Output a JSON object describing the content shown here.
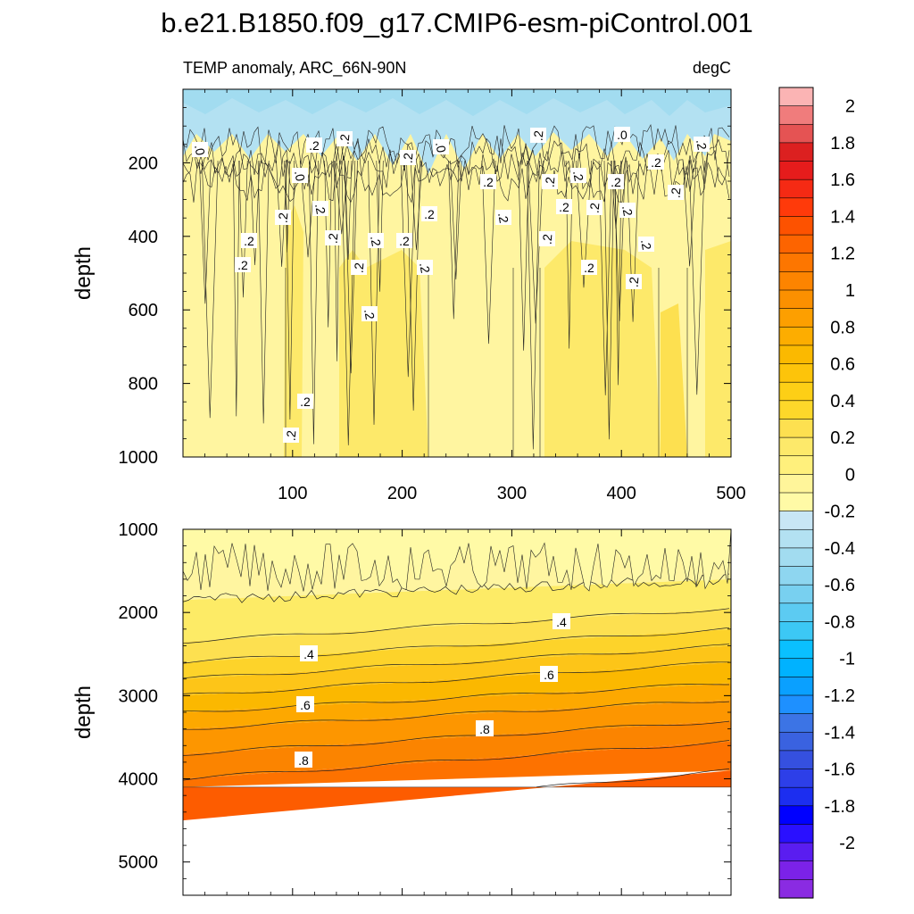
{
  "chart_data": {
    "type": "heatmap",
    "title": "b.e21.B1850.f09_g17.CMIP6-esm-piControl.001",
    "subtitle_left": "TEMP anomaly, ARC_66N-90N",
    "subtitle_right": "degC",
    "ylabel": "depth",
    "x_ticks": [
      "100",
      "200",
      "300",
      "400",
      "500"
    ],
    "xlim": [
      0,
      500
    ],
    "top_panel": {
      "ylim": [
        0,
        1000
      ],
      "y_ticks": [
        "200",
        "400",
        "600",
        "800",
        "1000"
      ],
      "contour_labels": [
        ".0",
        ".2",
        ".2",
        ".0",
        ".0",
        ".2",
        ".2",
        ".2",
        ".2",
        ".0",
        ".2",
        ".2",
        ".2",
        ".2",
        ".2",
        ".2",
        ".2",
        ".2",
        ".2",
        ".2",
        ".2",
        ".2",
        ".2",
        ".2",
        ".2",
        ".2",
        ".2",
        ".2",
        ".2",
        ".2",
        ".2",
        ".2",
        ".2",
        ".2",
        ".2",
        ".2"
      ]
    },
    "bottom_panel": {
      "ylim": [
        1000,
        5400
      ],
      "y_ticks": [
        "1000",
        "2000",
        "3000",
        "4000",
        "5000"
      ],
      "data_max_depth": 4100,
      "contour_labels": [
        ".4",
        ".4",
        ".6",
        ".6",
        ".8",
        ".8"
      ]
    },
    "colorbar": {
      "levels": [
        -2.1,
        -2,
        -1.9,
        -1.8,
        -1.7,
        -1.6,
        -1.5,
        -1.4,
        -1.3,
        -1.2,
        -1.1,
        -1,
        -0.9,
        -0.8,
        -0.7,
        -0.6,
        -0.5,
        -0.4,
        -0.3,
        -0.2,
        -0.1,
        0,
        0.1,
        0.2,
        0.3,
        0.4,
        0.5,
        0.6,
        0.7,
        0.8,
        0.9,
        1,
        1.1,
        1.2,
        1.3,
        1.4,
        1.5,
        1.6,
        1.7,
        1.8,
        1.9,
        2,
        2.1
      ],
      "labels": [
        "2",
        "1.8",
        "1.6",
        "1.4",
        "1.2",
        "1",
        "0.8",
        "0.6",
        "0.4",
        "0.2",
        "0",
        "-0.2",
        "-0.4",
        "-0.6",
        "-0.8",
        "-1",
        "-1.2",
        "-1.4",
        "-1.6",
        "-1.8",
        "-2"
      ],
      "colors": [
        "#8a2be2",
        "#7b22e8",
        "#5a1df0",
        "#2a10ff",
        "#0000ff",
        "#1c2ef0",
        "#2d3fe8",
        "#3550df",
        "#3a62e0",
        "#3c74e5",
        "#1e90ff",
        "#0aa0ff",
        "#00b2ff",
        "#0ac0ff",
        "#3cc8f5",
        "#5ccbf2",
        "#78d0f0",
        "#8ed6f0",
        "#a2dcf0",
        "#b3e1f2",
        "#c8e6f5",
        "#fffaa6",
        "#fff59a",
        "#fff07c",
        "#fde96a",
        "#fde050",
        "#fdd82a",
        "#fdcf16",
        "#fdc40a",
        "#fbb900",
        "#fdad00",
        "#fd9f00",
        "#fb9000",
        "#fd8400",
        "#fd7600",
        "#fd6400",
        "#fd5200",
        "#ff3a0a",
        "#f52a14",
        "#e61c1c",
        "#dc2020",
        "#e55353",
        "#f07c7c",
        "#fbb4b4"
      ]
    }
  }
}
